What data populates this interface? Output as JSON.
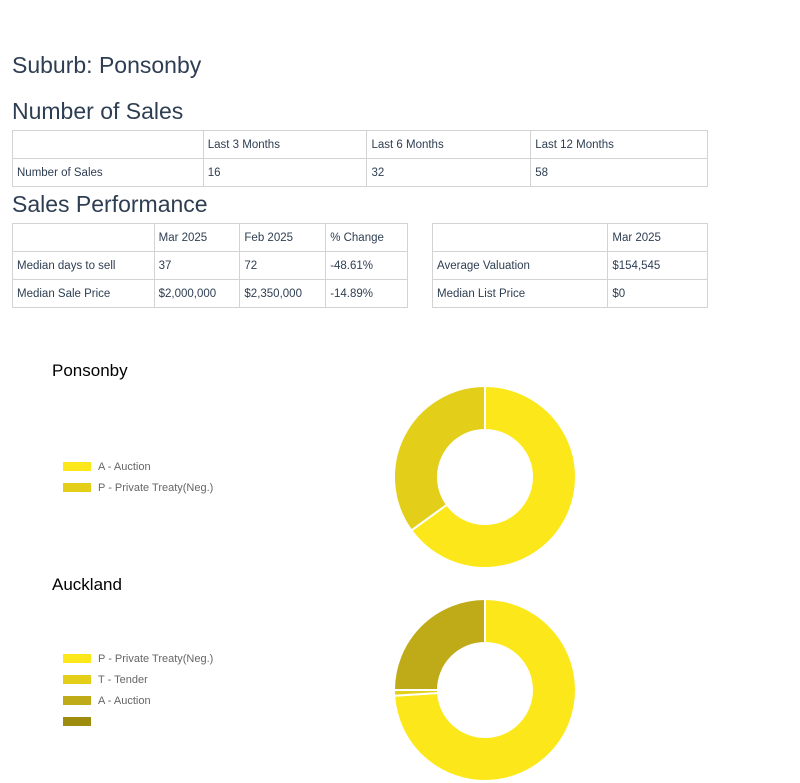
{
  "page": {
    "title": "Suburb: Ponsonby"
  },
  "number_of_sales": {
    "heading": "Number of Sales",
    "headers": [
      "",
      "Last 3 Months",
      "Last 6 Months",
      "Last 12 Months"
    ],
    "row": [
      "Number of Sales",
      "16",
      "32",
      "58"
    ]
  },
  "sales_performance": {
    "heading": "Sales Performance",
    "left_table": {
      "headers": [
        "",
        "Mar 2025",
        "Feb 2025",
        "% Change"
      ],
      "rows": [
        [
          "Median days to sell",
          "37",
          "72",
          "-48.61%"
        ],
        [
          "Median Sale Price",
          "$2,000,000",
          "$2,350,000",
          "-14.89%"
        ]
      ]
    },
    "right_table": {
      "headers": [
        "",
        "Mar 2025"
      ],
      "rows": [
        [
          "Average Valuation",
          "$154,545"
        ],
        [
          "Median List Price",
          "$0"
        ]
      ]
    }
  },
  "chart_data": [
    {
      "type": "pie",
      "title": "Ponsonby",
      "categories": [
        "A - Auction",
        "P - Private Treaty(Neg.)"
      ],
      "values": [
        65,
        35
      ],
      "colors": [
        "#fce81a",
        "#e3cf1a"
      ],
      "donut": true,
      "legend_position": "left"
    },
    {
      "type": "pie",
      "title": "Auckland",
      "categories": [
        "P - Private Treaty(Neg.)",
        "T - Tender",
        "A - Auction",
        ""
      ],
      "values": [
        74,
        1,
        25,
        0
      ],
      "colors": [
        "#fce81a",
        "#e3cf1a",
        "#bfab18",
        "#9e8c0f"
      ],
      "donut": true,
      "legend_position": "left"
    }
  ]
}
